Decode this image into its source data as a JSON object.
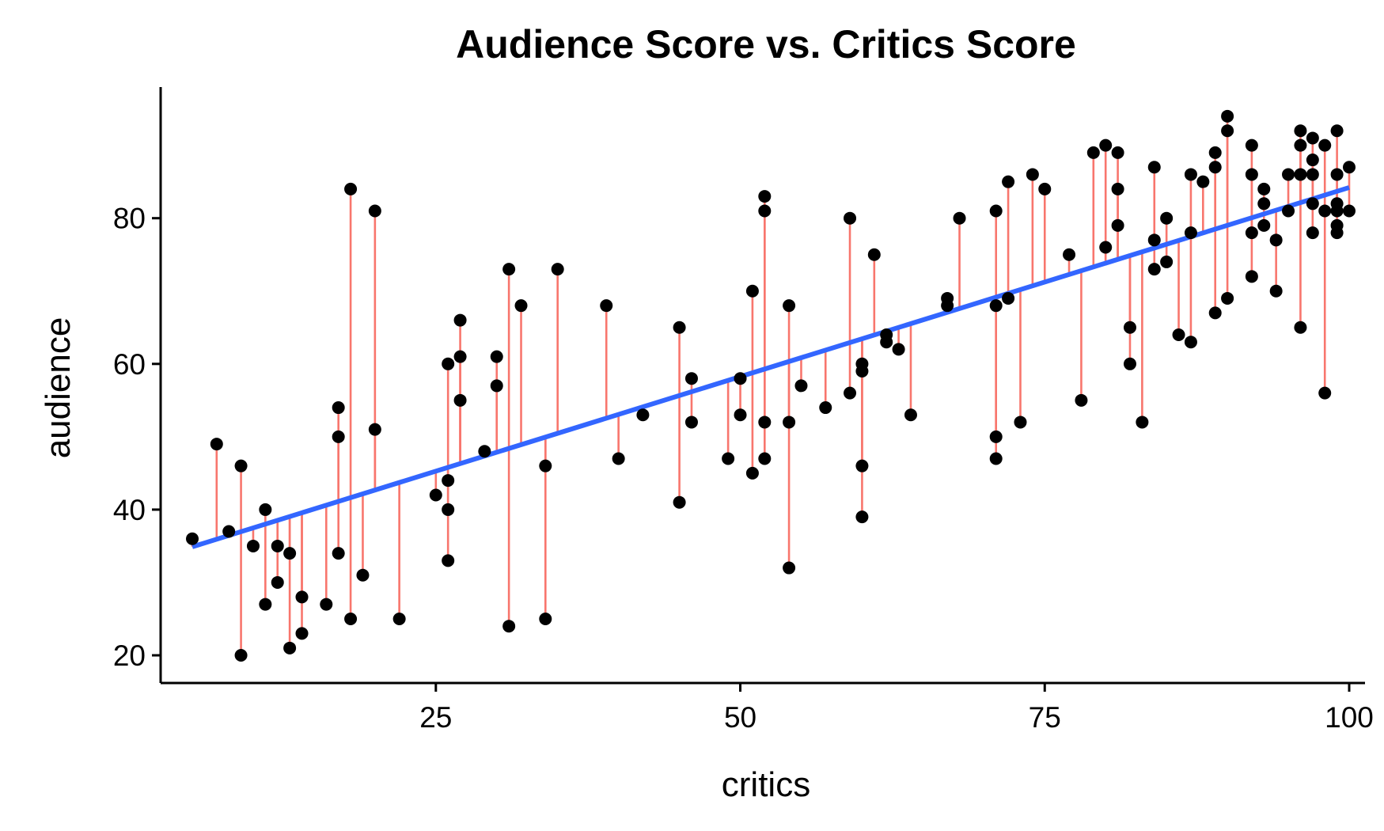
{
  "chart_data": {
    "type": "scatter",
    "title": "Audience Score vs. Critics Score",
    "xlabel": "critics",
    "ylabel": "audience",
    "xlim": [
      2.4,
      101.3
    ],
    "ylim": [
      16.2,
      98.0
    ],
    "x_ticks": [
      25,
      50,
      75,
      100
    ],
    "y_ticks": [
      20,
      40,
      60,
      80
    ],
    "grid": false,
    "legend": "none",
    "fit_line": {
      "intercept": 32.3,
      "slope": 0.5191,
      "x_range": [
        5,
        100
      ]
    },
    "colors": {
      "points": "#000000",
      "residuals": "#f8766d",
      "fit": "#3366ff"
    },
    "points": [
      [
        5,
        36
      ],
      [
        7,
        49
      ],
      [
        8,
        37
      ],
      [
        9,
        20
      ],
      [
        9,
        46
      ],
      [
        10,
        35
      ],
      [
        11,
        27
      ],
      [
        11,
        40
      ],
      [
        12,
        35
      ],
      [
        12,
        30
      ],
      [
        13,
        34
      ],
      [
        13,
        21
      ],
      [
        14,
        28
      ],
      [
        14,
        23
      ],
      [
        16,
        27
      ],
      [
        17,
        54
      ],
      [
        17,
        50
      ],
      [
        17,
        34
      ],
      [
        18,
        84
      ],
      [
        18,
        25
      ],
      [
        19,
        31
      ],
      [
        20,
        81
      ],
      [
        20,
        51
      ],
      [
        22,
        25
      ],
      [
        25,
        42
      ],
      [
        26,
        60
      ],
      [
        26,
        44
      ],
      [
        26,
        40
      ],
      [
        26,
        33
      ],
      [
        27,
        66
      ],
      [
        27,
        61
      ],
      [
        27,
        55
      ],
      [
        29,
        48
      ],
      [
        30,
        61
      ],
      [
        30,
        57
      ],
      [
        31,
        73
      ],
      [
        31,
        24
      ],
      [
        32,
        68
      ],
      [
        34,
        46
      ],
      [
        34,
        25
      ],
      [
        35,
        73
      ],
      [
        39,
        68
      ],
      [
        40,
        47
      ],
      [
        42,
        53
      ],
      [
        45,
        65
      ],
      [
        45,
        41
      ],
      [
        46,
        58
      ],
      [
        46,
        52
      ],
      [
        49,
        47
      ],
      [
        50,
        58
      ],
      [
        50,
        53
      ],
      [
        51,
        70
      ],
      [
        51,
        45
      ],
      [
        52,
        83
      ],
      [
        52,
        81
      ],
      [
        52,
        52
      ],
      [
        52,
        47
      ],
      [
        54,
        68
      ],
      [
        54,
        52
      ],
      [
        54,
        32
      ],
      [
        55,
        57
      ],
      [
        57,
        54
      ],
      [
        59,
        80
      ],
      [
        59,
        56
      ],
      [
        60,
        60
      ],
      [
        60,
        59
      ],
      [
        60,
        46
      ],
      [
        60,
        39
      ],
      [
        61,
        75
      ],
      [
        62,
        64
      ],
      [
        62,
        63
      ],
      [
        63,
        62
      ],
      [
        64,
        53
      ],
      [
        67,
        69
      ],
      [
        67,
        68
      ],
      [
        68,
        80
      ],
      [
        71,
        81
      ],
      [
        71,
        68
      ],
      [
        71,
        50
      ],
      [
        71,
        47
      ],
      [
        72,
        85
      ],
      [
        72,
        69
      ],
      [
        73,
        52
      ],
      [
        74,
        86
      ],
      [
        75,
        84
      ],
      [
        77,
        75
      ],
      [
        78,
        55
      ],
      [
        79,
        89
      ],
      [
        80,
        90
      ],
      [
        80,
        76
      ],
      [
        81,
        89
      ],
      [
        81,
        84
      ],
      [
        81,
        79
      ],
      [
        82,
        65
      ],
      [
        82,
        60
      ],
      [
        83,
        52
      ],
      [
        84,
        87
      ],
      [
        84,
        77
      ],
      [
        84,
        73
      ],
      [
        85,
        80
      ],
      [
        85,
        74
      ],
      [
        86,
        64
      ],
      [
        87,
        86
      ],
      [
        87,
        78
      ],
      [
        87,
        63
      ],
      [
        88,
        85
      ],
      [
        89,
        89
      ],
      [
        89,
        87
      ],
      [
        89,
        67
      ],
      [
        90,
        94
      ],
      [
        90,
        92
      ],
      [
        90,
        69
      ],
      [
        92,
        90
      ],
      [
        92,
        86
      ],
      [
        92,
        78
      ],
      [
        92,
        72
      ],
      [
        93,
        84
      ],
      [
        93,
        82
      ],
      [
        93,
        79
      ],
      [
        94,
        77
      ],
      [
        94,
        70
      ],
      [
        95,
        86
      ],
      [
        95,
        81
      ],
      [
        96,
        92
      ],
      [
        96,
        90
      ],
      [
        96,
        86
      ],
      [
        96,
        65
      ],
      [
        97,
        91
      ],
      [
        97,
        88
      ],
      [
        97,
        86
      ],
      [
        97,
        82
      ],
      [
        97,
        78
      ],
      [
        98,
        90
      ],
      [
        98,
        81
      ],
      [
        98,
        56
      ],
      [
        99,
        92
      ],
      [
        99,
        86
      ],
      [
        99,
        82
      ],
      [
        99,
        81
      ],
      [
        99,
        79
      ],
      [
        99,
        78
      ],
      [
        100,
        87
      ],
      [
        100,
        81
      ]
    ]
  }
}
